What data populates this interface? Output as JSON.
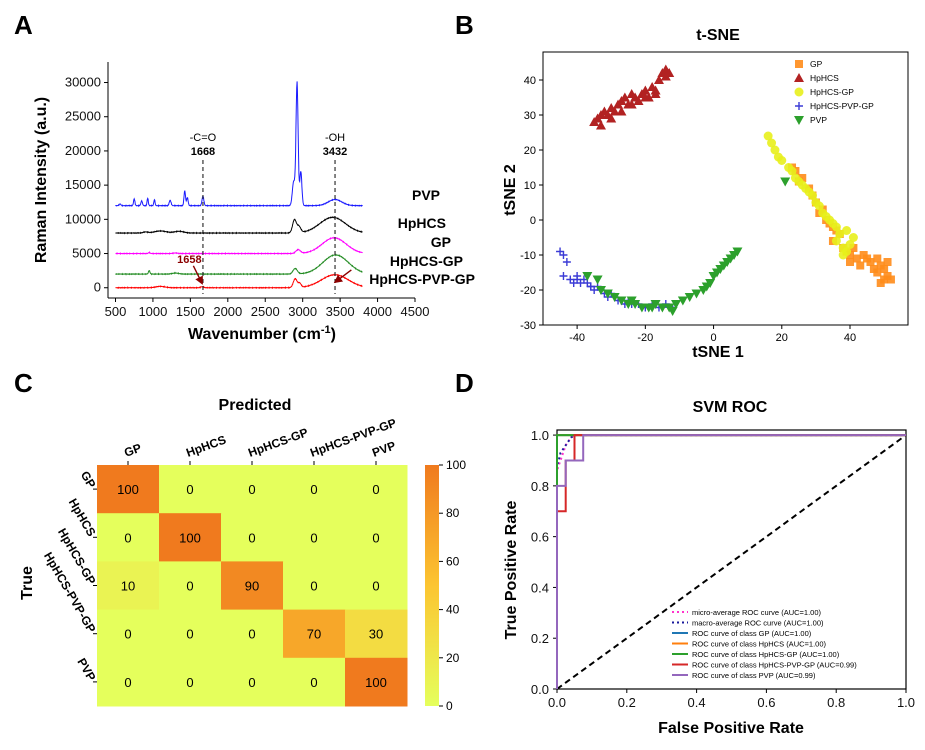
{
  "panels": {
    "a": "A",
    "b": "B",
    "c": "C",
    "d": "D"
  },
  "chart_data": [
    {
      "type": "line",
      "panel": "A",
      "title": "",
      "xlabel": "Wavenumber (cm⁻¹)",
      "xlabel_main": "Wavenumber (cm",
      "xlabel_sup": "-1",
      "xlabel_close": ")",
      "ylabel": "Raman Intensity (a.u.)",
      "xlim": [
        400,
        4500
      ],
      "ylim": [
        -1500,
        33000
      ],
      "xticks": [
        500,
        1000,
        1500,
        2000,
        2500,
        3000,
        3500,
        4000,
        4500
      ],
      "yticks": [
        0,
        5000,
        10000,
        15000,
        20000,
        25000,
        30000
      ],
      "series": [
        {
          "name": "PVP",
          "color": "#1a1aff",
          "offset": 12000,
          "profile": "pvp"
        },
        {
          "name": "HpHCS",
          "color": "#000000",
          "offset": 8000,
          "profile": "hphcs"
        },
        {
          "name": "GP",
          "color": "#ff00ff",
          "offset": 5000,
          "profile": "gp"
        },
        {
          "name": "HpHCS-GP",
          "color": "#228b22",
          "offset": 2000,
          "profile": "hphcsgp"
        },
        {
          "name": "HpHCS-PVP-GP",
          "color": "#ff0000",
          "offset": 0,
          "profile": "hphcspvpgp"
        }
      ],
      "annotations": [
        {
          "label": "-C=O",
          "value": "1668",
          "x": 1668
        },
        {
          "label": "-OH",
          "value": "3432",
          "x": 3432
        }
      ],
      "arrow_labels": [
        {
          "text": "1658",
          "color": "#8b0000",
          "x_from": 1540,
          "y_from": 3200,
          "x_to": 1658,
          "y_to": 600
        },
        {
          "text": "",
          "color": "#8b0000",
          "x_from": 3650,
          "y_from": 2600,
          "x_to": 3430,
          "y_to": 800
        }
      ]
    },
    {
      "type": "scatter",
      "panel": "B",
      "title": "t-SNE",
      "xlabel": "tSNE 1",
      "ylabel": "tSNE 2",
      "xlim": [
        -50,
        57
      ],
      "ylim": [
        -30,
        48
      ],
      "xticks": [
        -40,
        -20,
        0,
        20,
        40
      ],
      "yticks": [
        -30,
        -20,
        -10,
        0,
        10,
        20,
        30,
        40
      ],
      "legend_position": "top-right",
      "series": [
        {
          "name": "GP",
          "color": "#ff8c1a",
          "marker": "square",
          "x": [
            23,
            24,
            26,
            25,
            28,
            29,
            30,
            32,
            31,
            33,
            34,
            35,
            36,
            37,
            35,
            38,
            39,
            40,
            41,
            42,
            40,
            43,
            44,
            45,
            46,
            47,
            48,
            49,
            50,
            51,
            50,
            49,
            48,
            52,
            51
          ],
          "y": [
            15,
            14,
            12,
            11,
            9,
            7,
            5,
            3,
            2,
            0,
            -1,
            -2,
            -3,
            -4,
            -6,
            -8,
            -9,
            -10,
            -8,
            -11,
            -12,
            -13,
            -10,
            -11,
            -12,
            -14,
            -15,
            -13,
            -14,
            -16,
            -17,
            -18,
            -11,
            -17,
            -12
          ]
        },
        {
          "name": "HpHCS",
          "color": "#b22222",
          "marker": "triangle-up",
          "x": [
            -35,
            -34,
            -33,
            -32,
            -31,
            -30,
            -29,
            -28,
            -27,
            -26,
            -25,
            -24,
            -23,
            -22,
            -21,
            -20,
            -19,
            -18,
            -17,
            -16,
            -15,
            -14,
            -13,
            -33,
            -30,
            -27,
            -24,
            -20,
            -17,
            -14
          ],
          "y": [
            28,
            29,
            30,
            31,
            30,
            32,
            31,
            33,
            34,
            35,
            33,
            36,
            35,
            34,
            36,
            37,
            35,
            38,
            37,
            40,
            42,
            43,
            42,
            27,
            29,
            31,
            33,
            35,
            36,
            41
          ]
        },
        {
          "name": "HpHCS-GP",
          "color": "#e8f01c",
          "marker": "circle",
          "x": [
            16,
            17,
            18,
            19,
            20,
            22,
            23,
            24,
            25,
            26,
            27,
            28,
            29,
            30,
            31,
            32,
            33,
            34,
            35,
            36,
            37,
            36,
            38,
            39,
            38,
            40,
            41,
            39
          ],
          "y": [
            24,
            22,
            20,
            18,
            17,
            15,
            14,
            12,
            11,
            10,
            9,
            8,
            7,
            5,
            4,
            2,
            1,
            0,
            -1,
            -2,
            -4,
            -6,
            -8,
            -9,
            -10,
            -7,
            -5,
            -3
          ]
        },
        {
          "name": "HpHCS-PVP-GP",
          "color": "#3b3bd6",
          "marker": "plus",
          "x": [
            -45,
            -44,
            -43,
            -44,
            -42,
            -41,
            -40,
            -39,
            -38,
            -37,
            -36,
            -35,
            -34,
            -33,
            -32,
            -31,
            -30,
            -29,
            -28,
            -27,
            -26,
            -25,
            -24,
            -22,
            -20,
            -18,
            -16,
            -14,
            -12,
            -40,
            -36
          ],
          "y": [
            -9,
            -10,
            -12,
            -16,
            -17,
            -18,
            -17,
            -18,
            -17,
            -18,
            -19,
            -20,
            -19,
            -20,
            -21,
            -22,
            -21,
            -22,
            -23,
            -23,
            -24,
            -23,
            -24,
            -24,
            -25,
            -24,
            -25,
            -24,
            -25,
            -16,
            -19
          ]
        },
        {
          "name": "PVP",
          "color": "#2ca02c",
          "marker": "triangle-down",
          "x": [
            -37,
            -34,
            -33,
            -31,
            -29,
            -27,
            -25,
            -23,
            -21,
            -19,
            -17,
            -15,
            -13,
            -11,
            -9,
            -7,
            -5,
            -3,
            -2,
            -1,
            0,
            1,
            2,
            3,
            4,
            5,
            6,
            7,
            21,
            -12,
            -18,
            -24
          ],
          "y": [
            -16,
            -17,
            -20,
            -21,
            -22,
            -23,
            -24,
            -24,
            -25,
            -25,
            -24,
            -25,
            -25,
            -24,
            -23,
            -22,
            -21,
            -20,
            -19,
            -18,
            -16,
            -15,
            -14,
            -13,
            -12,
            -11,
            -10,
            -9,
            11,
            -26,
            -25,
            -23
          ]
        }
      ]
    },
    {
      "type": "heatmap",
      "panel": "C",
      "title": "Predicted",
      "ylabel": "True",
      "categories": [
        "GP",
        "HpHCS",
        "HpHCS-GP",
        "HpHCS-PVP-GP",
        "PVP"
      ],
      "values": [
        [
          100,
          0,
          0,
          0,
          0
        ],
        [
          0,
          100,
          0,
          0,
          0
        ],
        [
          10,
          0,
          90,
          0,
          0
        ],
        [
          0,
          0,
          0,
          70,
          30
        ],
        [
          0,
          0,
          0,
          0,
          100
        ]
      ],
      "colorbar_ticks": [
        0,
        20,
        40,
        60,
        80,
        100
      ],
      "vmin": 0,
      "vmax": 100,
      "colormap": [
        "#e5ff5c",
        "#f07a1e"
      ]
    },
    {
      "type": "line",
      "panel": "D",
      "title": "SVM ROC",
      "xlabel": "False Positive Rate",
      "ylabel": "True Positive Rate",
      "xlim": [
        0,
        1
      ],
      "ylim": [
        0,
        1.02
      ],
      "xticks": [
        0.0,
        0.2,
        0.4,
        0.6,
        0.8,
        1.0
      ],
      "yticks": [
        0.0,
        0.2,
        0.4,
        0.6,
        0.8,
        1.0
      ],
      "legend_position": "bottom-right",
      "series": [
        {
          "name": "micro-average ROC curve (AUC=1.00)",
          "color": "#ff33cc",
          "dash": "2,3",
          "x": [
            0,
            0,
            0.005,
            0.01,
            0.015,
            0.02,
            0.025,
            0.03,
            0.04,
            0.05,
            1
          ],
          "y": [
            0,
            0.86,
            0.88,
            0.9,
            0.92,
            0.94,
            0.96,
            0.97,
            0.99,
            1,
            1
          ]
        },
        {
          "name": "macro-average ROC curve (AUC=1.00)",
          "color": "#1a1a9c",
          "dash": "2,3",
          "x": [
            0,
            0,
            0.005,
            0.01,
            0.02,
            0.03,
            0.04,
            0.05,
            1
          ],
          "y": [
            0,
            0.88,
            0.9,
            0.93,
            0.95,
            0.97,
            0.99,
            1,
            1
          ]
        },
        {
          "name": "ROC curve of class GP (AUC=1.00)",
          "color": "#1f77b4",
          "dash": "",
          "x": [
            0,
            0,
            1
          ],
          "y": [
            0,
            1,
            1
          ]
        },
        {
          "name": "ROC curve of class HpHCS (AUC=1.00)",
          "color": "#ff7f0e",
          "dash": "",
          "x": [
            0,
            0,
            1
          ],
          "y": [
            0,
            1,
            1
          ]
        },
        {
          "name": "ROC curve of class HpHCS-GP (AUC=1.00)",
          "color": "#2ca02c",
          "dash": "",
          "x": [
            0,
            0,
            1
          ],
          "y": [
            0,
            1,
            1
          ]
        },
        {
          "name": "ROC curve of class HpHCS-PVP-GP (AUC=0.99)",
          "color": "#d62728",
          "dash": "",
          "x": [
            0,
            0,
            0.025,
            0.025,
            0.05,
            0.05,
            1
          ],
          "y": [
            0,
            0.7,
            0.7,
            0.9,
            0.9,
            1,
            1
          ]
        },
        {
          "name": "ROC curve of class PVP (AUC=0.99)",
          "color": "#9467bd",
          "dash": "",
          "x": [
            0,
            0,
            0.025,
            0.025,
            0.05,
            0.05,
            0.075,
            0.075,
            1
          ],
          "y": [
            0,
            0.8,
            0.8,
            0.9,
            0.9,
            0.9,
            0.9,
            1,
            1
          ]
        }
      ],
      "diagonal": {
        "color": "#000000",
        "dash": "6,4"
      }
    }
  ]
}
